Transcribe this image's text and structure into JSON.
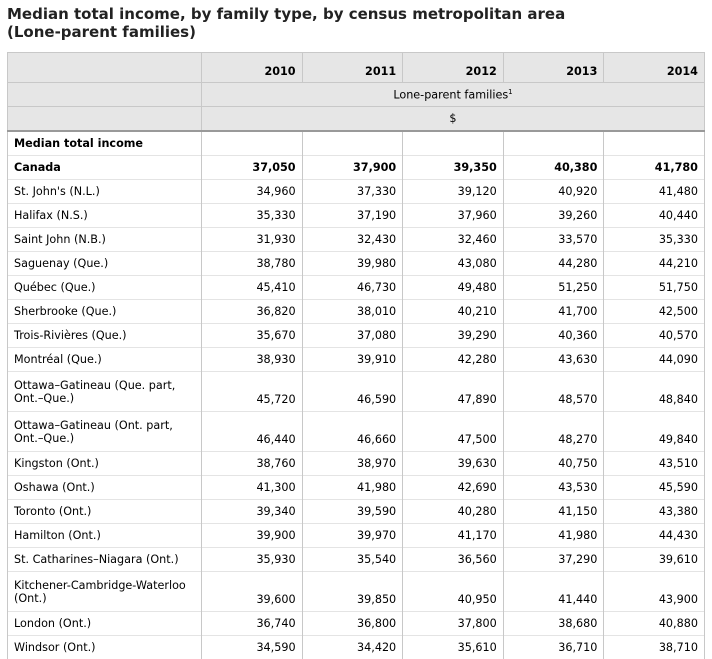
{
  "title_line1": "Median total income, by family type, by census metropolitan area",
  "title_line2": "(Lone-parent families)",
  "years": [
    "2010",
    "2011",
    "2012",
    "2013",
    "2014"
  ],
  "family_type": "Lone-parent families",
  "footnote_mark": "1",
  "unit": "$",
  "section_label": "Median total income",
  "rows": [
    {
      "area": "Canada",
      "values": [
        "37,050",
        "37,900",
        "39,350",
        "40,380",
        "41,780"
      ],
      "bold": true
    },
    {
      "area": "St. John's (N.L.)",
      "values": [
        "34,960",
        "37,330",
        "39,120",
        "40,920",
        "41,480"
      ]
    },
    {
      "area": "Halifax (N.S.)",
      "values": [
        "35,330",
        "37,190",
        "37,960",
        "39,260",
        "40,440"
      ]
    },
    {
      "area": "Saint John (N.B.)",
      "values": [
        "31,930",
        "32,430",
        "32,460",
        "33,570",
        "35,330"
      ]
    },
    {
      "area": "Saguenay (Que.)",
      "values": [
        "38,780",
        "39,980",
        "43,080",
        "44,280",
        "44,210"
      ]
    },
    {
      "area": "Québec (Que.)",
      "values": [
        "45,410",
        "46,730",
        "49,480",
        "51,250",
        "51,750"
      ]
    },
    {
      "area": "Sherbrooke (Que.)",
      "values": [
        "36,820",
        "38,010",
        "40,210",
        "41,700",
        "42,500"
      ]
    },
    {
      "area": "Trois-Rivières (Que.)",
      "values": [
        "35,670",
        "37,080",
        "39,290",
        "40,360",
        "40,570"
      ]
    },
    {
      "area": "Montréal (Que.)",
      "values": [
        "38,930",
        "39,910",
        "42,280",
        "43,630",
        "44,090"
      ]
    },
    {
      "area": "Ottawa–Gatineau (Que. part, Ont.–Que.)",
      "values": [
        "45,720",
        "46,590",
        "47,890",
        "48,570",
        "48,840"
      ],
      "tall": true
    },
    {
      "area": "Ottawa–Gatineau (Ont. part, Ont.–Que.)",
      "values": [
        "46,440",
        "46,660",
        "47,500",
        "48,270",
        "49,840"
      ],
      "tall": true
    },
    {
      "area": "Kingston (Ont.)",
      "values": [
        "38,760",
        "38,970",
        "39,630",
        "40,750",
        "43,510"
      ]
    },
    {
      "area": "Oshawa (Ont.)",
      "values": [
        "41,300",
        "41,980",
        "42,690",
        "43,530",
        "45,590"
      ]
    },
    {
      "area": "Toronto (Ont.)",
      "values": [
        "39,340",
        "39,590",
        "40,280",
        "41,150",
        "43,380"
      ]
    },
    {
      "area": "Hamilton (Ont.)",
      "values": [
        "39,900",
        "39,970",
        "41,170",
        "41,980",
        "44,430"
      ]
    },
    {
      "area": "St. Catharines–Niagara (Ont.)",
      "values": [
        "35,930",
        "35,540",
        "36,560",
        "37,290",
        "39,610"
      ]
    },
    {
      "area": "Kitchener-Cambridge-Waterloo (Ont.)",
      "values": [
        "39,600",
        "39,850",
        "40,950",
        "41,440",
        "43,900"
      ],
      "tall": true
    },
    {
      "area": "London (Ont.)",
      "values": [
        "36,740",
        "36,800",
        "37,800",
        "38,680",
        "40,880"
      ]
    },
    {
      "area": "Windsor (Ont.)",
      "values": [
        "34,590",
        "34,420",
        "35,610",
        "36,710",
        "38,710"
      ]
    }
  ]
}
